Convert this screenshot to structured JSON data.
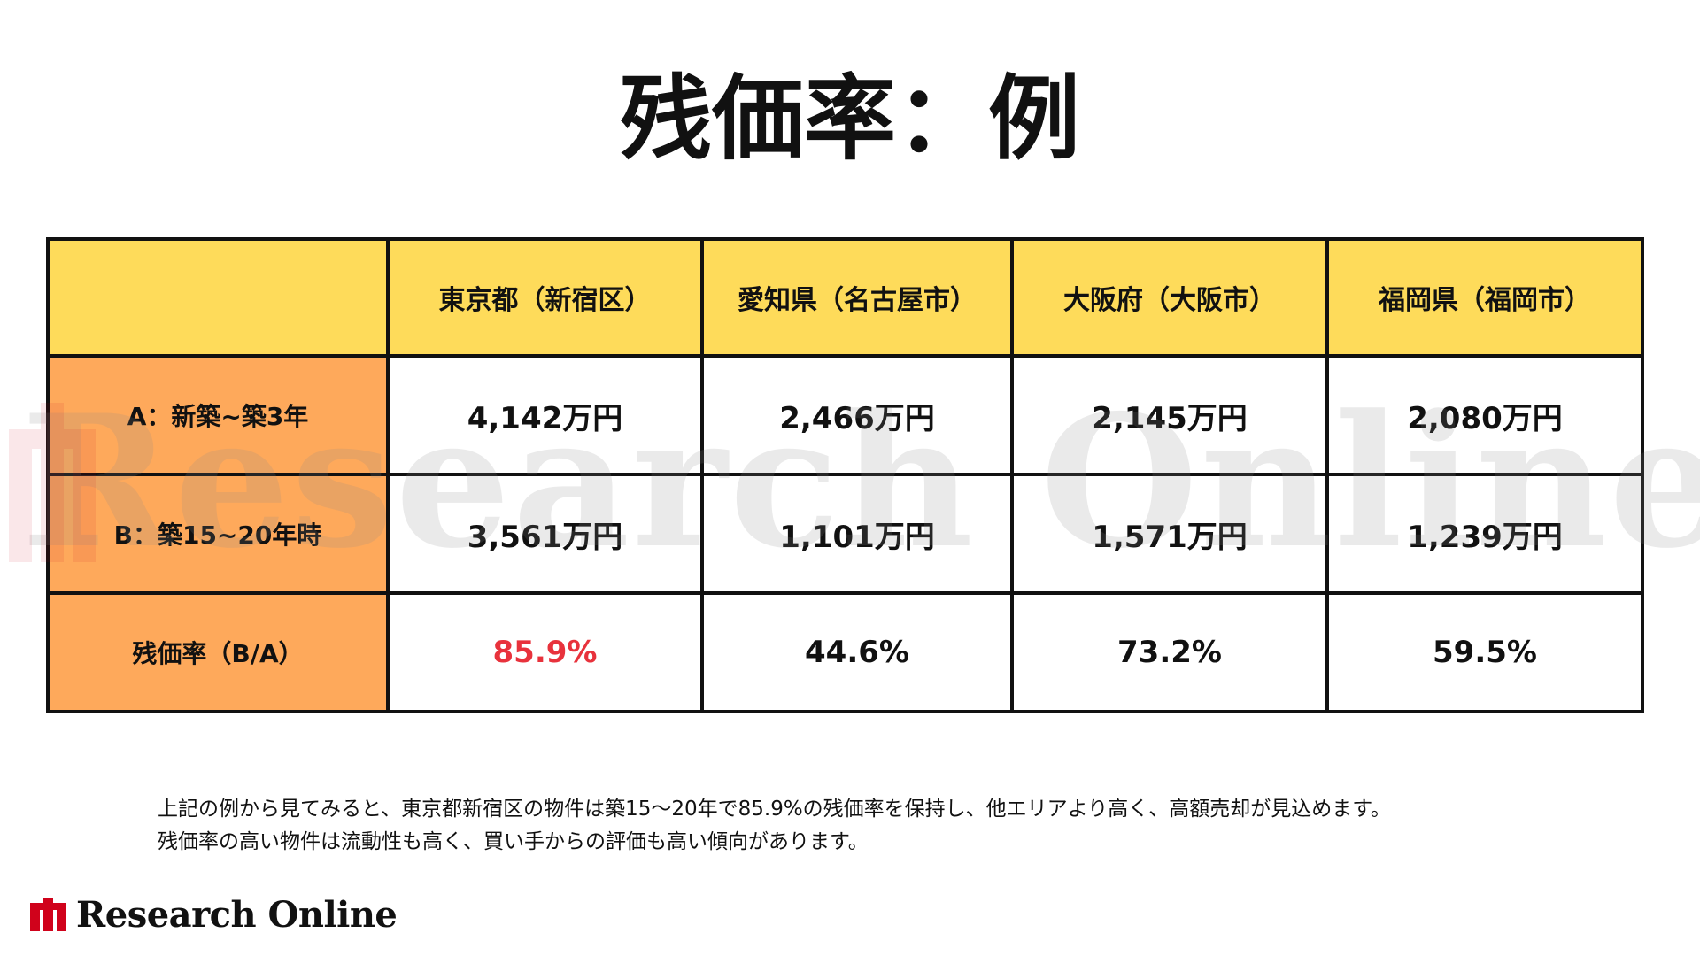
{
  "title": "残価率：例",
  "table": {
    "corner": "",
    "columns": [
      "東京都（新宿区）",
      "愛知県（名古屋市）",
      "大阪府（大阪市）",
      "福岡県（福岡市）"
    ],
    "rows": [
      {
        "label": "A：新築~築3年",
        "values": [
          "4,142万円",
          "2,466万円",
          "2,145万円",
          "2,080万円"
        ]
      },
      {
        "label": "B：築15~20年時",
        "values": [
          "3,561万円",
          "1,101万円",
          "1,571万円",
          "1,239万円"
        ]
      },
      {
        "label": "残価率（B/A）",
        "values": [
          "85.9%",
          "44.6%",
          "73.2%",
          "59.5%"
        ]
      }
    ]
  },
  "note": {
    "line1": "上記の例から見てみると、東京都新宿区の物件は築15～20年で85.9%の残価率を保持し、他エリアより高く、高額売却が見込めます。",
    "line2": "残価率の高い物件は流動性も高く、買い手からの評価も高い傾向があります。"
  },
  "footer": {
    "logo_text": "Research Online"
  },
  "watermark": {
    "text": "Research Online"
  },
  "colors": {
    "header_bg": "#fedb5a",
    "row_label_bg": "#fea95b",
    "highlight_text": "#e8323c",
    "logo_red": "#d0021b",
    "border": "#111111"
  }
}
